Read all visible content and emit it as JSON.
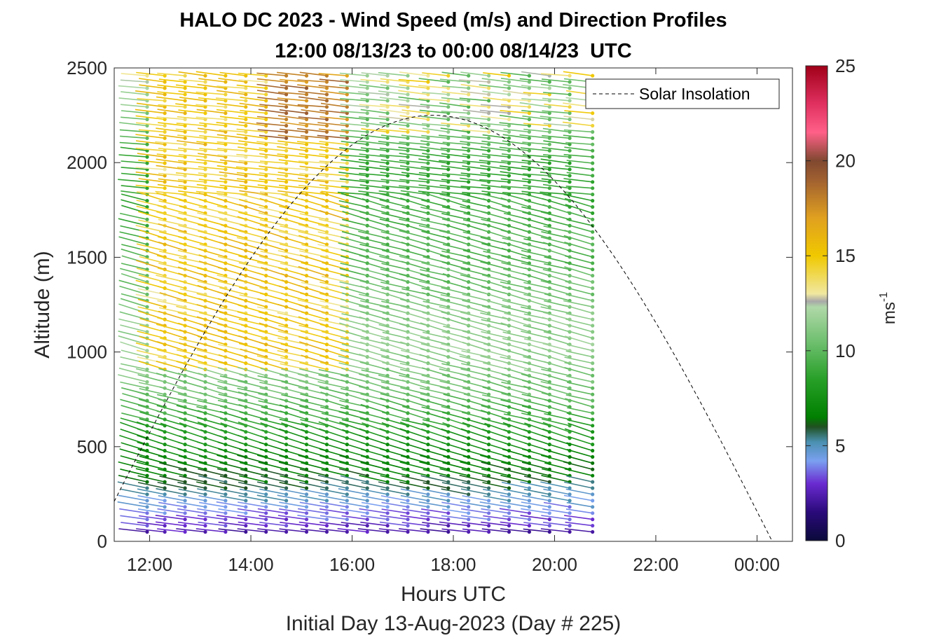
{
  "chart_data": {
    "type": "scatter",
    "title": "HALO DC 2023 - Wind Speed (m/s) and Direction Profiles",
    "subtitle": "12:00 08/13/23 to 00:00 08/14/23  UTC",
    "xlabel": "Hours UTC",
    "ylabel": "Altitude (m)",
    "footer": "Initial Day 13-Aug-2023 (Day # 225)",
    "xlim": [
      11.3,
      24.7
    ],
    "ylim": [
      0,
      2500
    ],
    "xticks": [
      12,
      14,
      16,
      18,
      20,
      22,
      24
    ],
    "xtick_labels": [
      "12:00",
      "14:00",
      "16:00",
      "18:00",
      "20:00",
      "22:00",
      "00:00"
    ],
    "yticks": [
      0,
      500,
      1000,
      1500,
      2000,
      2500
    ],
    "ytick_labels": [
      "0",
      "500",
      "1000",
      "1500",
      "2000",
      "2500"
    ],
    "colorbar": {
      "label": "ms",
      "label_exponent": "-1",
      "range": [
        0,
        25
      ],
      "ticks": [
        0,
        5,
        10,
        15,
        20,
        25
      ],
      "tick_labels": [
        "0",
        "5",
        "10",
        "15",
        "20",
        "25"
      ],
      "colormap": [
        [
          0,
          "#0a0a3a"
        ],
        [
          1.5,
          "#2a0a7a"
        ],
        [
          3,
          "#6a2ad0"
        ],
        [
          4.2,
          "#7aa0f0"
        ],
        [
          5.2,
          "#4a90b0"
        ],
        [
          6,
          "#205020"
        ],
        [
          6.5,
          "#008000"
        ],
        [
          8.5,
          "#28a028"
        ],
        [
          10.5,
          "#70c070"
        ],
        [
          12.3,
          "#b0d8a8"
        ],
        [
          12.6,
          "#a8a8a8"
        ],
        [
          13,
          "#f0e8a0"
        ],
        [
          15,
          "#f0c800"
        ],
        [
          17,
          "#e0a020"
        ],
        [
          19,
          "#a06030"
        ],
        [
          20,
          "#804830"
        ],
        [
          21.5,
          "#ff6088"
        ],
        [
          23,
          "#e03060"
        ],
        [
          25,
          "#a00018"
        ]
      ]
    },
    "profile_times": [
      11.95,
      12.3,
      12.7,
      13.1,
      13.5,
      13.9,
      14.3,
      14.7,
      15.1,
      15.5,
      15.9,
      16.3,
      16.7,
      17.1,
      17.5,
      17.9,
      18.3,
      18.7,
      19.1,
      19.5,
      19.9,
      20.3,
      20.75
    ],
    "speed_profile": {
      "altitude_m": [
        50,
        150,
        250,
        350,
        450,
        600,
        800,
        1000,
        1200,
        1400,
        1600,
        1800,
        2000,
        2200,
        2400,
        2500
      ],
      "speed_ms": [
        2.5,
        3.8,
        5.2,
        6.5,
        7.2,
        8.5,
        10.5,
        11.5,
        11.0,
        10.0,
        9.5,
        9.0,
        8.8,
        10.5,
        12.5,
        14.0
      ]
    },
    "warm_regime": {
      "time_range": [
        12.0,
        16.0
      ],
      "altitude_range_m": [
        900,
        2500
      ],
      "speed_ms": [
        13.5,
        16.0
      ]
    },
    "upper_jet": {
      "time_range": [
        14.5,
        16.2
      ],
      "altitude_range_m": [
        2100,
        2500
      ],
      "speed_ms": [
        17,
        19
      ]
    },
    "solar_insolation": {
      "name": "Solar Insolation",
      "rise_hour": 10.9,
      "set_hour": 24.3,
      "peak_altitude_m": 2250,
      "style": "dashed",
      "color": "#000000"
    },
    "legend": {
      "position": "top-right",
      "entries": [
        "Solar Insolation"
      ]
    }
  }
}
